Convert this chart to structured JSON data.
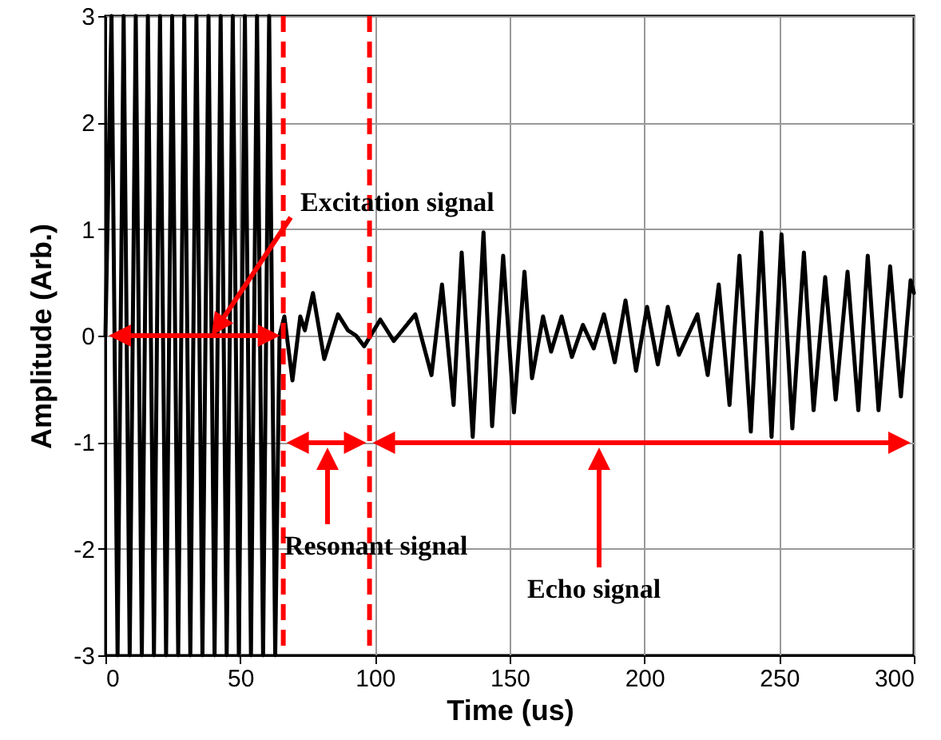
{
  "chart_data": {
    "type": "line",
    "xlabel": "Time (us)",
    "ylabel": "Amplitude (Arb.)",
    "xlim": [
      0,
      300
    ],
    "ylim": [
      -3,
      3
    ],
    "xticks": [
      0,
      50,
      100,
      150,
      200,
      250,
      300
    ],
    "yticks": [
      -3,
      -2,
      -1,
      0,
      1,
      2,
      3
    ],
    "grid": true,
    "marker": "none",
    "line_style": "solid",
    "x": [
      0,
      2.25,
      4.5,
      6.75,
      9,
      11.25,
      13.5,
      15.75,
      18,
      20.25,
      22.5,
      24.75,
      27,
      29.25,
      31.5,
      33.75,
      36,
      38.25,
      40.5,
      42.75,
      45,
      47.25,
      49.5,
      51.75,
      54,
      56.25,
      58.5,
      60.75,
      63,
      64.6,
      66.4,
      69.4,
      72.3,
      74,
      77,
      81.2,
      86.3,
      90,
      93,
      96,
      102,
      107,
      115,
      121,
      124.9,
      129.2,
      132.2,
      136.3,
      140.3,
      143.5,
      147.6,
      151.6,
      155.5,
      158.3,
      162.4,
      165.4,
      169.3,
      173.1,
      177.2,
      181.2,
      185,
      189,
      193,
      196.9,
      201,
      205,
      208.7,
      212.8,
      219.7,
      223.5,
      227.6,
      231.6,
      235.3,
      239.5,
      243.4,
      247.2,
      250.9,
      254.9,
      259.2,
      262.8,
      267.1,
      271,
      275.4,
      279.4,
      282.9,
      286.9,
      291.2,
      295.2,
      298.8,
      300
    ],
    "series": [
      {
        "color": "#000000",
        "values": [
          0,
          3,
          -3,
          3,
          -3,
          3,
          -3,
          3,
          -3,
          3,
          -3,
          3,
          -3,
          3,
          -3,
          3,
          -3,
          3,
          -3,
          3,
          -3,
          3,
          -3,
          3,
          -3,
          3,
          -3,
          3,
          -3,
          0,
          0.18,
          -0.42,
          0.18,
          0.05,
          0.4,
          -0.22,
          0.2,
          0.05,
          0,
          -0.1,
          0.15,
          -0.05,
          0.2,
          -0.37,
          0.48,
          -0.65,
          0.78,
          -0.95,
          0.97,
          -0.85,
          0.75,
          -0.72,
          0.6,
          -0.4,
          0.18,
          -0.15,
          0.18,
          -0.2,
          0.1,
          -0.12,
          0.2,
          -0.25,
          0.33,
          -0.33,
          0.27,
          -0.27,
          0.27,
          -0.18,
          0.2,
          -0.37,
          0.48,
          -0.65,
          0.75,
          -0.9,
          0.97,
          -0.95,
          0.95,
          -0.87,
          0.78,
          -0.7,
          0.55,
          -0.6,
          0.6,
          -0.7,
          0.75,
          -0.7,
          0.65,
          -0.57,
          0.52,
          0.4
        ]
      }
    ],
    "ref_lines": [
      {
        "axis": "x",
        "value": 66,
        "color": "#ff0000",
        "line_style": "dashed"
      },
      {
        "axis": "x",
        "value": 98,
        "color": "#ff0000",
        "line_style": "dashed"
      }
    ],
    "annotations": [
      {
        "text": "Excitation signal",
        "x": 39.4,
        "y": 0
      },
      "Resonant signal",
      "Echo signal"
    ]
  }
}
